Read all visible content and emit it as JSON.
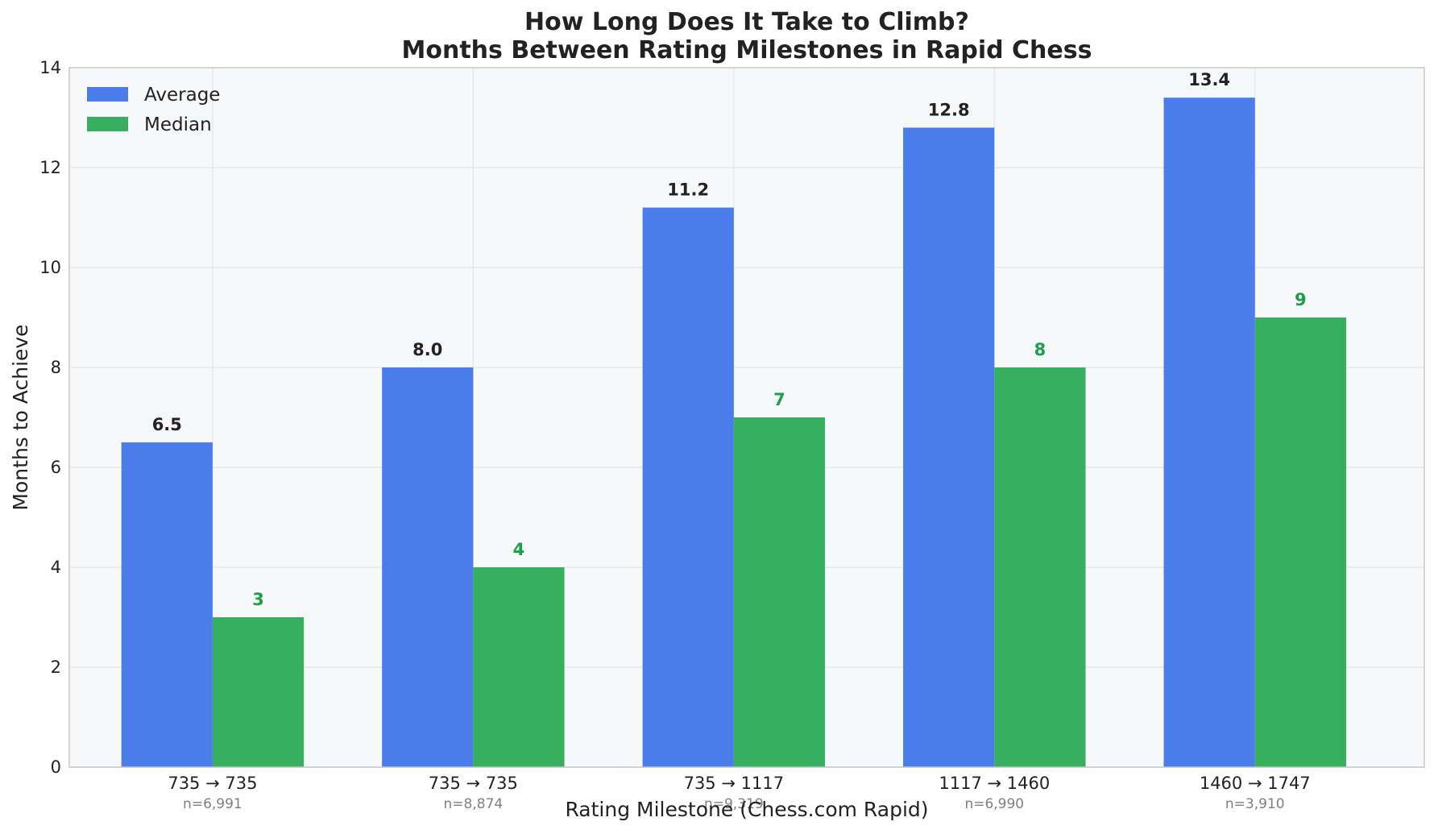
{
  "chart_data": {
    "type": "bar",
    "title_line1": "How Long Does It Take to Climb?",
    "title_line2": "Months Between Rating Milestones in Rapid Chess",
    "xlabel": "Rating Milestone (Chess.com Rapid)",
    "ylabel": "Months to Achieve",
    "ylim": [
      0,
      14
    ],
    "yticks": [
      "0",
      "2",
      "4",
      "6",
      "8",
      "10",
      "12",
      "14"
    ],
    "categories": [
      "735 → 735",
      "735 → 735",
      "735 → 1117",
      "1117 → 1460",
      "1460 → 1747"
    ],
    "sample_sizes": [
      "n=6,991",
      "n=8,874",
      "n=9,319",
      "n=6,990",
      "n=3,910"
    ],
    "series": [
      {
        "name": "Average",
        "color": "#4a7cec",
        "label_color": "#222222",
        "values": [
          6.5,
          8.0,
          11.2,
          12.8,
          13.4
        ],
        "value_labels": [
          "6.5",
          "8.0",
          "11.2",
          "12.8",
          "13.4"
        ]
      },
      {
        "name": "Median",
        "color": "#37af5e",
        "label_color": "#1e9e48",
        "values": [
          3,
          4,
          7,
          8,
          9
        ],
        "value_labels": [
          "3",
          "4",
          "7",
          "8",
          "9"
        ]
      }
    ],
    "grid": true,
    "legend": "top-left",
    "plot_background": "#f7f8fa"
  }
}
